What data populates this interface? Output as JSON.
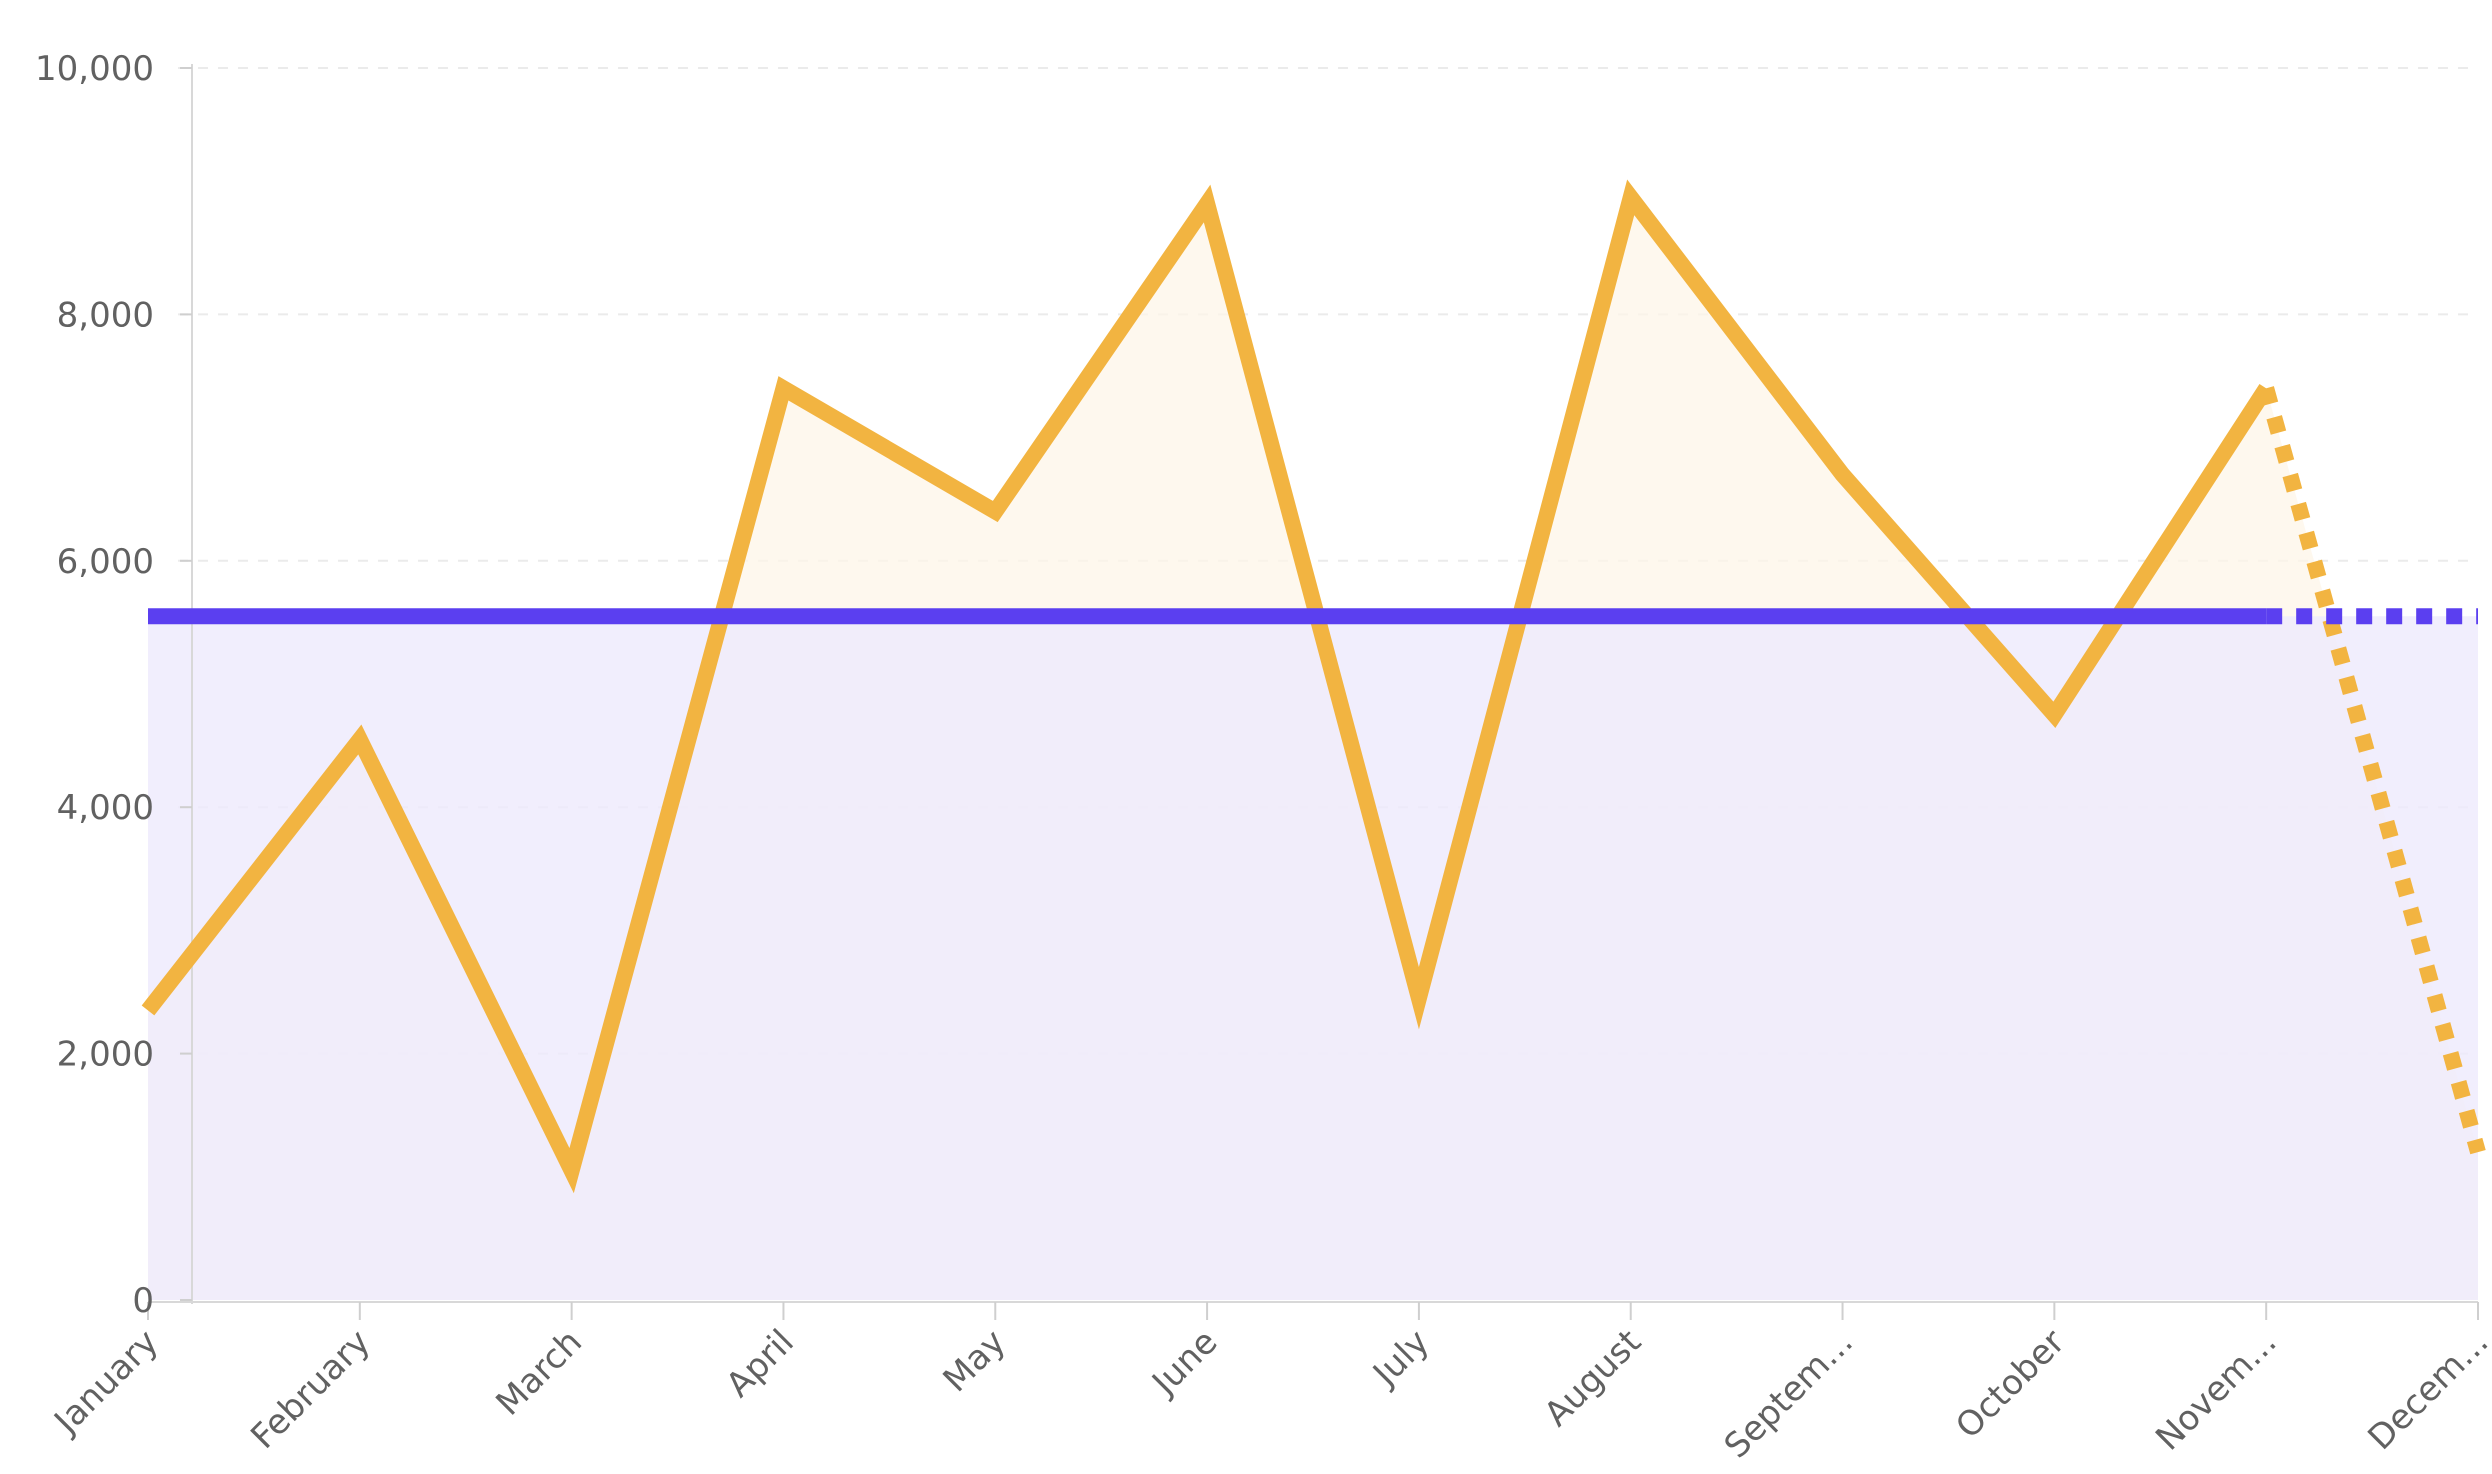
{
  "chart_data": {
    "type": "line",
    "categories": [
      "January",
      "February",
      "March",
      "April",
      "May",
      "June",
      "July",
      "August",
      "Septem...",
      "October",
      "Novem...",
      "Decem..."
    ],
    "series": [
      {
        "values": [
          2350,
          4550,
          1050,
          7400,
          6400,
          8900,
          2450,
          8950,
          6700,
          4750,
          7400,
          1200
        ],
        "color": "#f2b441",
        "fill": "#fdf5e8",
        "dashed_from_index": 10
      },
      {
        "values": [
          5550,
          5550,
          5550,
          5550,
          5550,
          5550,
          5550,
          5550,
          5550,
          5550,
          5550,
          5550
        ],
        "color": "#5b3ff0",
        "fill": "#eeeafd",
        "dashed_from_index": 10
      }
    ],
    "yticks": [
      "0",
      "2,000",
      "4,000",
      "6,000",
      "8,000",
      "10,000"
    ],
    "ytick_values": [
      0,
      2000,
      4000,
      6000,
      8000,
      10000
    ],
    "ylim": [
      0,
      10000
    ],
    "grid": true,
    "title": "",
    "xlabel": "",
    "ylabel": ""
  }
}
